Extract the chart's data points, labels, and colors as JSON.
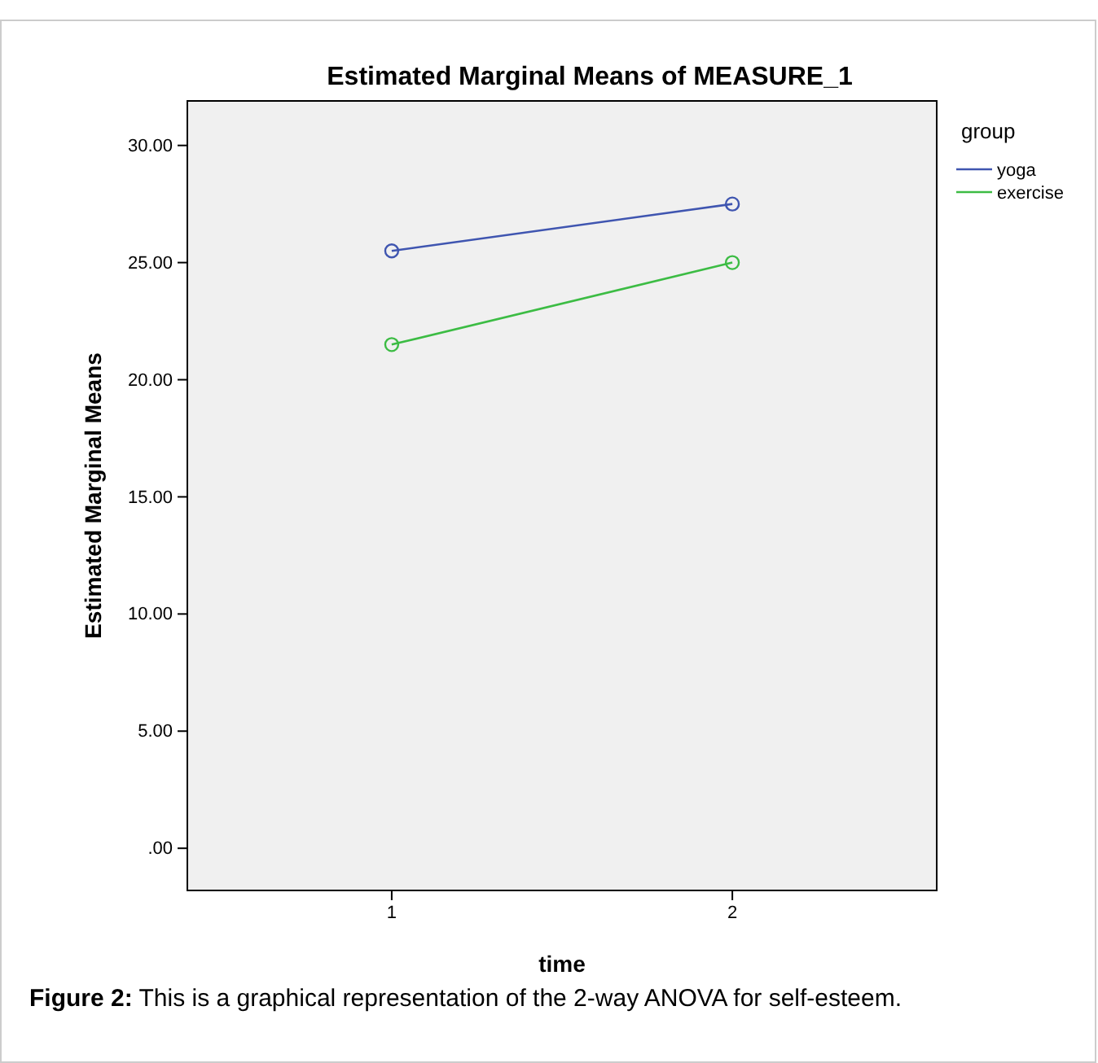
{
  "chart_data": {
    "type": "line",
    "title": "Estimated Marginal Means of MEASURE_1",
    "xlabel": "time",
    "ylabel": "Estimated Marginal Means",
    "legend_title": "group",
    "categories": [
      "1",
      "2"
    ],
    "series": [
      {
        "name": "yoga",
        "color": "#3f55b0",
        "values": [
          25.5,
          27.5
        ]
      },
      {
        "name": "exercise",
        "color": "#3cbc44",
        "values": [
          21.5,
          25.0
        ]
      }
    ],
    "ylim": [
      -1.8,
      31.9
    ],
    "yticks": [
      {
        "value": 0,
        "label": ".00"
      },
      {
        "value": 5,
        "label": "5.00"
      },
      {
        "value": 10,
        "label": "10.00"
      },
      {
        "value": 15,
        "label": "15.00"
      },
      {
        "value": 20,
        "label": "20.00"
      },
      {
        "value": 25,
        "label": "25.00"
      },
      {
        "value": 30,
        "label": "30.00"
      }
    ],
    "marker": "circle",
    "line_style": "solid",
    "grid": false,
    "legend": "top right",
    "annotations": [
      "Figure 2: This is a graphical representation of the 2-way ANOVA for self-esteem."
    ]
  }
}
